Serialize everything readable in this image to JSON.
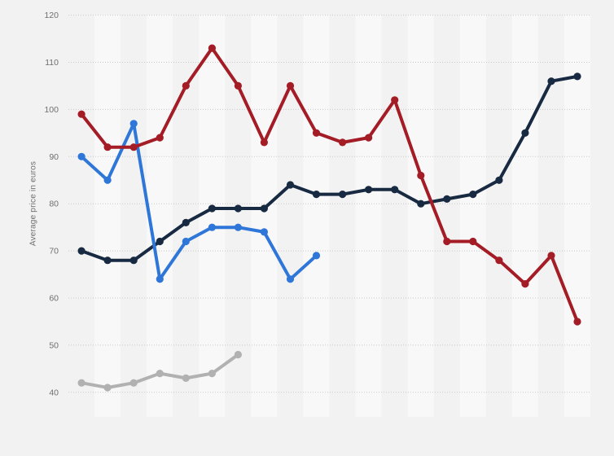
{
  "chart_data": {
    "type": "line",
    "title": "",
    "ylabel": "Average price in euros",
    "xlabel": "",
    "ylim": [
      40,
      120
    ],
    "yticks": [
      40,
      50,
      60,
      70,
      80,
      90,
      100,
      110,
      120
    ],
    "x_point_count": 20,
    "x_tick_labels_visible": false,
    "grid": "horizontal-dotted",
    "legend_position": "none",
    "background_color": "#f2f2f2",
    "plot_band_color": "#f8f8f8",
    "gridline_color": "#c9c9c9",
    "axis_text_color": "#6f6f6f",
    "series": [
      {
        "name": "gray-line",
        "color": "#b1b1b1",
        "values": [
          42,
          41,
          42,
          44,
          43,
          44,
          48
        ]
      },
      {
        "name": "dark-navy-line",
        "color": "#182a42",
        "values": [
          70,
          68,
          68,
          72,
          76,
          79,
          79,
          79,
          84,
          82,
          82,
          83,
          83,
          80,
          81,
          82,
          85,
          95,
          106,
          107
        ]
      },
      {
        "name": "light-blue-line",
        "color": "#2f76d9",
        "values": [
          90,
          85,
          97,
          64,
          72,
          75,
          75,
          74,
          64,
          69
        ]
      },
      {
        "name": "dark-red-line",
        "color": "#a31c26",
        "values": [
          99,
          92,
          92,
          94,
          105,
          113,
          105,
          93,
          105,
          95,
          93,
          94,
          102,
          86,
          72,
          72,
          68,
          63,
          69,
          55
        ]
      }
    ]
  }
}
